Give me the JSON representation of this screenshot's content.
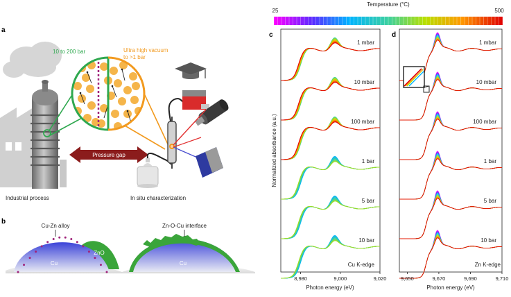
{
  "colorbar": {
    "title": "Temperature (°C)",
    "min_label": "25",
    "max_label": "500",
    "min_value": 25,
    "max_value": 500
  },
  "panel_a": {
    "letter": "a",
    "label_pressure_high": "10 to 200 bar",
    "label_vacuum_line1": "Ultra high vacuum",
    "label_vacuum_line2": "to >1 bar",
    "gap_label": "Pressure gap",
    "left_caption": "Industrial process",
    "right_caption": "In situ characterization",
    "colors": {
      "green": "#2fa84f",
      "orange": "#f29a1f",
      "gap_arrow": "#8b1c1c"
    }
  },
  "panel_b": {
    "letter": "b",
    "left_label": "Cu-Zn alloy",
    "right_label": "Zn-O-Cu interface",
    "zno_label": "ZnO",
    "cu_left": "Cu",
    "cu_right": "Cu",
    "colors": {
      "cu": "#4a4fd0",
      "zno": "#3aa53a",
      "alloy_dots": "#a0247a"
    }
  },
  "chart_data": [
    {
      "type": "line",
      "panel": "c",
      "xlabel": "Photon energy (eV)",
      "ylabel": "Normalized absorbance (a.u.)",
      "edge_label": "Cu K-edge",
      "xlim": [
        8970,
        9020
      ],
      "x_ticks": [
        8980,
        9000,
        9020
      ],
      "x_tick_labels": [
        "8,980",
        "9,000",
        "9,020"
      ],
      "edge_energy": 8980,
      "peak_energy": 8997,
      "pressures": [
        "1 mbar",
        "10 mbar",
        "100 mbar",
        "1 bar",
        "5 bar",
        "10 bar"
      ],
      "curves_per_stack": 12,
      "temperature_range": [
        25,
        500
      ]
    },
    {
      "type": "line",
      "panel": "d",
      "xlabel": "Photon energy (eV)",
      "edge_label": "Zn K-edge",
      "xlim": [
        9645,
        9710
      ],
      "x_ticks": [
        9650,
        9670,
        9690,
        9710
      ],
      "x_tick_labels": [
        "9,650",
        "9,670",
        "9,690",
        "9,710"
      ],
      "edge_energy": 9662,
      "peak_energy": 9669,
      "pressures": [
        "1 mbar",
        "10 mbar",
        "100 mbar",
        "1 bar",
        "5 bar",
        "10 bar"
      ],
      "curves_per_stack": 12,
      "temperature_range": [
        25,
        500
      ]
    }
  ]
}
